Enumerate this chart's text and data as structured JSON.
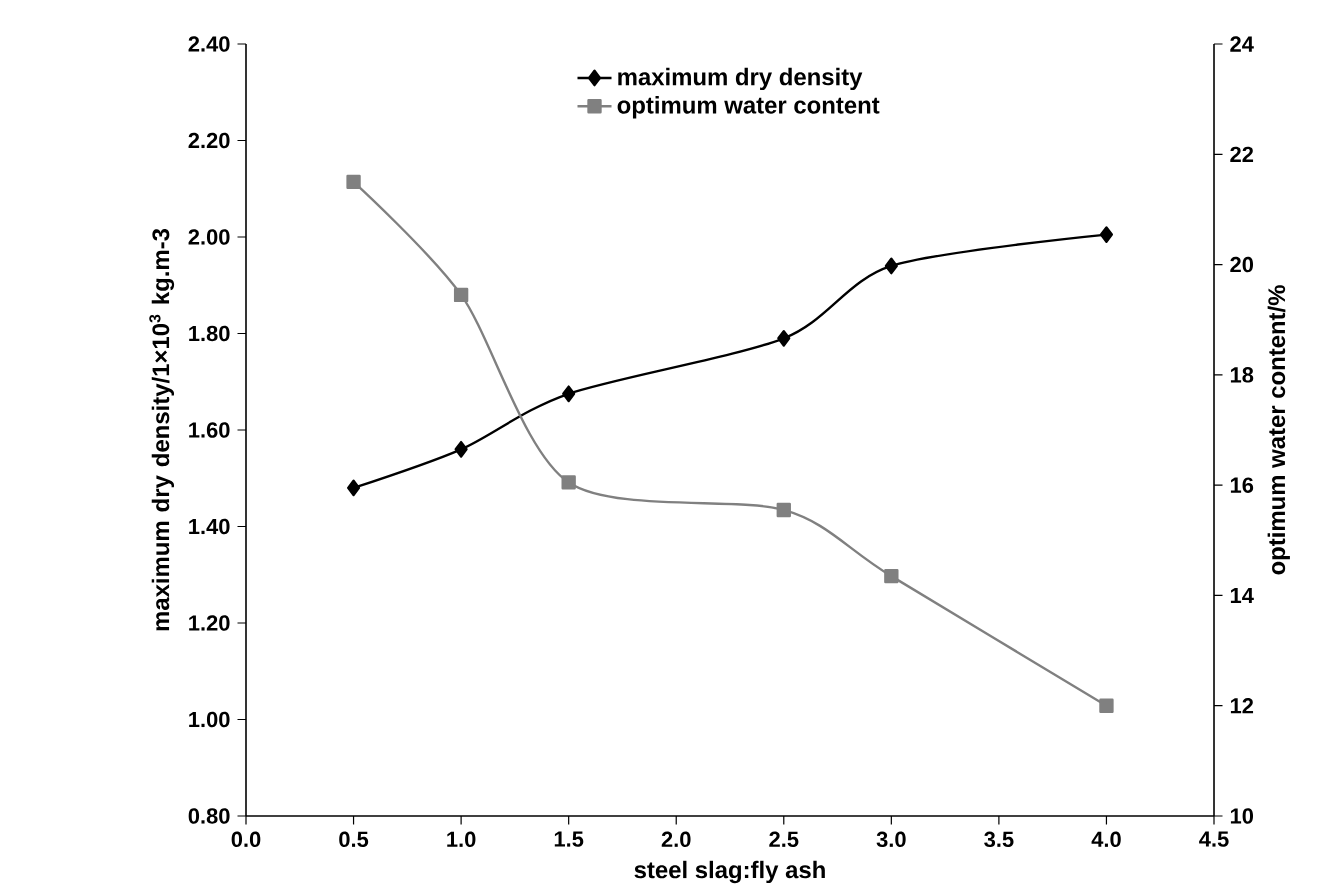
{
  "chart_data": {
    "type": "line",
    "xlabel": "steel slag:fly ash",
    "ylabel": "maximum dry density/1×10$^{3}$ kg.m-3",
    "y2label": "optimum water content/%",
    "x": [
      0.5,
      1.0,
      1.5,
      2.5,
      3.0,
      4.0
    ],
    "series": [
      {
        "name": "maximum dry density",
        "color": "#000000",
        "marker": "diamond",
        "values": [
          1.48,
          1.56,
          1.675,
          1.79,
          1.94,
          2.005
        ]
      },
      {
        "name": "optimum water content",
        "color": "#808080",
        "marker": "square",
        "axis": "y2",
        "values": [
          21.5,
          19.45,
          16.05,
          15.55,
          14.35,
          12.0
        ]
      }
    ],
    "xlim": [
      0,
      4.5
    ],
    "xticks": [
      {
        "value": 0,
        "label": "0.0"
      },
      {
        "value": 0.5,
        "label": "0.5"
      },
      {
        "value": 1,
        "label": "1.0"
      },
      {
        "value": 1.5,
        "label": "1.5"
      },
      {
        "value": 2,
        "label": "2.0"
      },
      {
        "value": 2.5,
        "label": "2.5"
      },
      {
        "value": 3,
        "label": "3.0"
      },
      {
        "value": 3.5,
        "label": "3.5"
      },
      {
        "value": 4,
        "label": "4.0"
      },
      {
        "value": 4.5,
        "label": "4.5"
      }
    ],
    "ylim": [
      0.8,
      2.4
    ],
    "yticks": [
      {
        "value": 0.8,
        "label": "0.80"
      },
      {
        "value": 1.0,
        "label": "1.00"
      },
      {
        "value": 1.2,
        "label": "1.20"
      },
      {
        "value": 1.4,
        "label": "1.40"
      },
      {
        "value": 1.6,
        "label": "1.60"
      },
      {
        "value": 1.8,
        "label": "1.80"
      },
      {
        "value": 2.0,
        "label": "2.00"
      },
      {
        "value": 2.2,
        "label": "2.20"
      },
      {
        "value": 2.4,
        "label": "2.40"
      }
    ],
    "y2lim": [
      10,
      24
    ],
    "y2ticks": [
      10,
      12,
      14,
      16,
      18,
      20,
      22,
      24
    ],
    "legend": "top"
  }
}
